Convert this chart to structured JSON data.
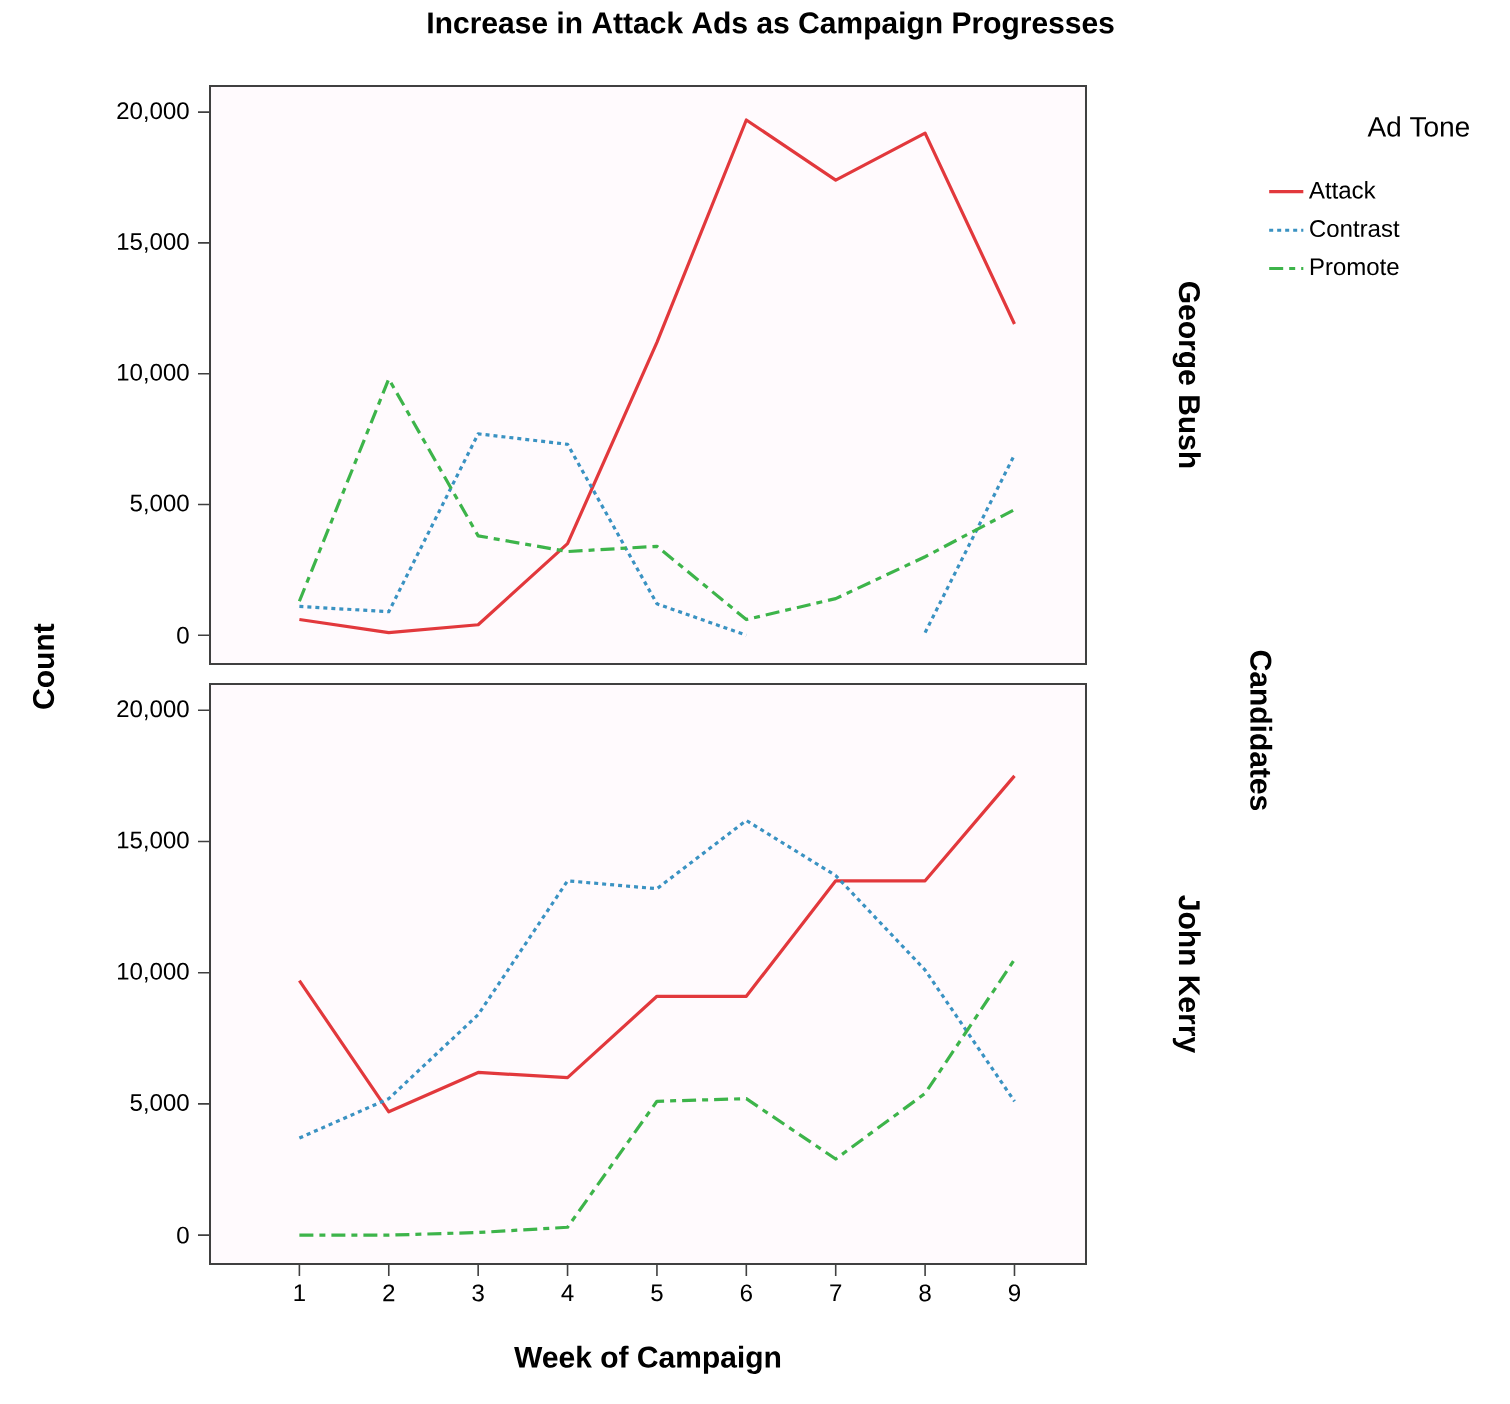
{
  "chart_data": [
    {
      "type": "line",
      "title": "Increase in Attack Ads as Campaign Progresses",
      "y2label": "George Bush",
      "legend_title": "Ad Tone",
      "legend": "right",
      "annotations": [
        "Candidates"
      ],
      "tick_labels": "y",
      "x": [
        1,
        2,
        3,
        4,
        5,
        6,
        7,
        8,
        9
      ],
      "xlim": [
        0,
        9.8
      ],
      "ylim": [
        -1100,
        21000
      ],
      "yticks": [
        0,
        {
          "value": 5000,
          "label": "5,000"
        },
        {
          "value": 10000,
          "label": "10,000"
        },
        {
          "value": 15000,
          "label": "15,000"
        },
        {
          "value": 20000,
          "label": "20,000"
        }
      ],
      "series": [
        {
          "name": "Attack",
          "color": "#e2383c",
          "line_style": "solid",
          "values": [
            600,
            100,
            400,
            3500,
            11200,
            19700,
            17400,
            19200,
            11900
          ]
        },
        {
          "name": "Contrast",
          "color": "#3a92c2",
          "line_style": "dotted",
          "values": [
            1100,
            900,
            7700,
            7300,
            1200,
            0,
            null,
            100,
            6900
          ]
        },
        {
          "name": "Promote",
          "color": "#3db44a",
          "line_style": "dashed",
          "values": [
            1300,
            9800,
            3800,
            3200,
            3400,
            600,
            1400,
            3000,
            4800
          ]
        }
      ]
    },
    {
      "type": "line",
      "y2label": "John Kerry",
      "xlabel": "Week of Campaign",
      "ylabel": "Count",
      "x": [
        1,
        2,
        3,
        4,
        5,
        6,
        7,
        8,
        9
      ],
      "xlim": [
        0,
        9.8
      ],
      "ylim": [
        -1100,
        21000
      ],
      "xticks": [
        1,
        2,
        3,
        4,
        5,
        6,
        7,
        8,
        9
      ],
      "yticks": [
        0,
        {
          "value": 5000,
          "label": "5,000"
        },
        {
          "value": 10000,
          "label": "10,000"
        },
        {
          "value": 15000,
          "label": "15,000"
        },
        {
          "value": 20000,
          "label": "20,000"
        }
      ],
      "series": [
        {
          "color": "#e2383c",
          "line_style": "solid",
          "values": [
            9700,
            4700,
            6200,
            6000,
            9100,
            9100,
            13500,
            13500,
            17500
          ]
        },
        {
          "color": "#3a92c2",
          "line_style": "dotted",
          "values": [
            3700,
            5200,
            8400,
            13500,
            13200,
            15800,
            13700,
            10100,
            5100
          ]
        },
        {
          "color": "#3db44a",
          "line_style": "dashed",
          "values": [
            0,
            0,
            100,
            300,
            5100,
            5200,
            2900,
            5400,
            10500
          ]
        }
      ]
    }
  ]
}
